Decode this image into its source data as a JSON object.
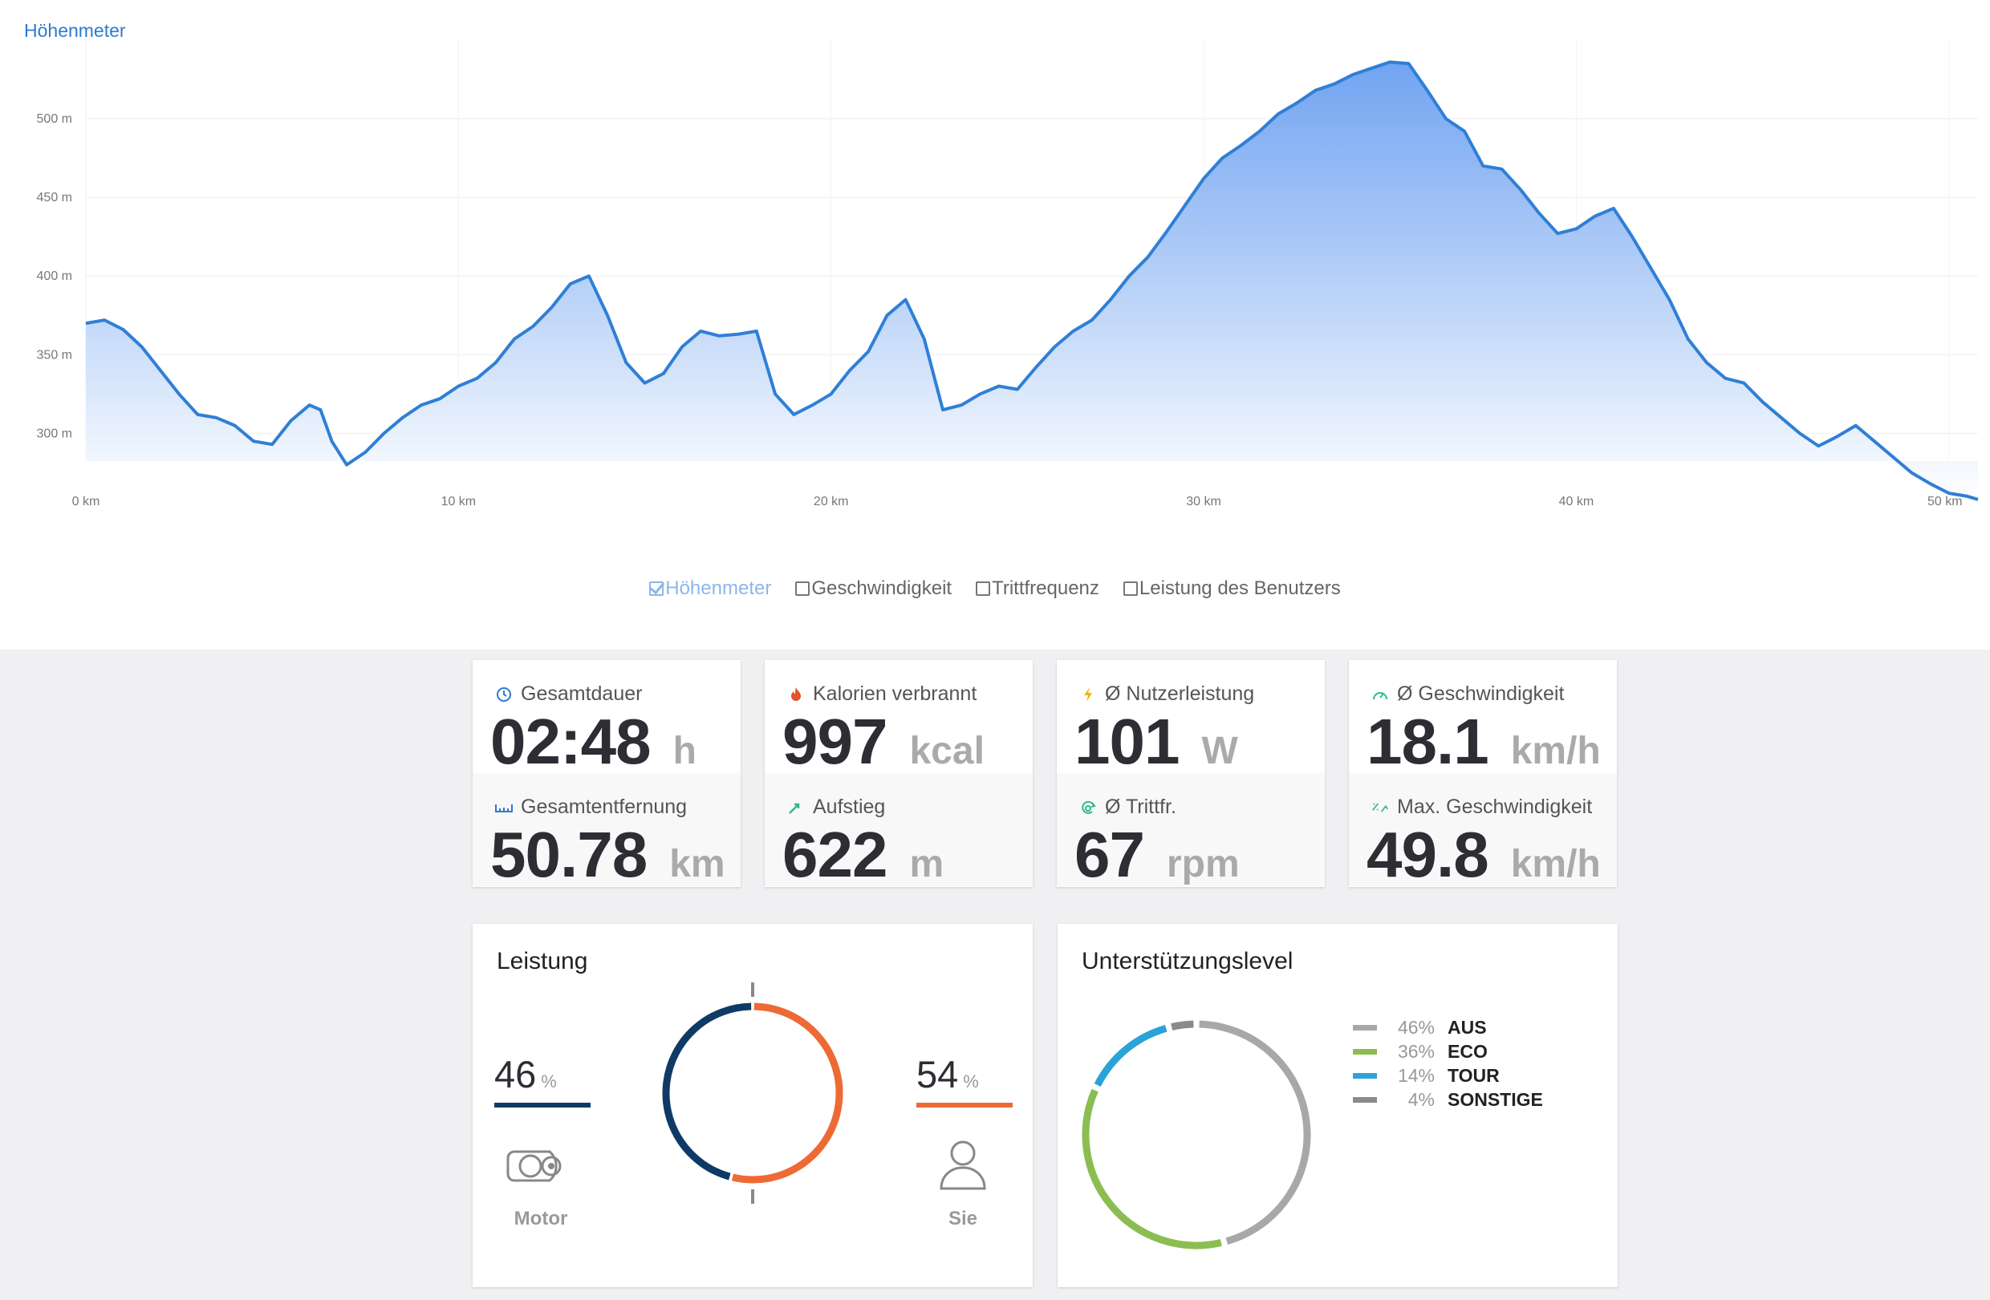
{
  "elevation": {
    "title": "Höhenmeter",
    "y_ticks": [
      "300 m",
      "350 m",
      "400 m",
      "450 m",
      "500 m"
    ],
    "x_ticks": [
      "0 km",
      "10 km",
      "20 km",
      "30 km",
      "40 km",
      "50 km"
    ],
    "legend": [
      {
        "label": "Höhenmeter",
        "checked": true
      },
      {
        "label": "Geschwindigkeit",
        "checked": false
      },
      {
        "label": "Trittfrequenz",
        "checked": false
      },
      {
        "label": "Leistung des Benutzers",
        "checked": false
      }
    ],
    "colors": {
      "line": "#2f7fd6",
      "fill_top": "#6a9ff0",
      "fill_bottom": "#ffffff",
      "title": "#2c7bd0"
    }
  },
  "chart_data": {
    "type": "area",
    "title": "Höhenmeter",
    "xlabel": "",
    "ylabel": "",
    "x_unit": "km",
    "y_unit": "m",
    "xlim": [
      0,
      50.78
    ],
    "ylim": [
      260,
      540
    ],
    "grid": true,
    "x": [
      0,
      0.5,
      1,
      1.5,
      2,
      2.5,
      3,
      3.5,
      4,
      4.5,
      5,
      5.5,
      6,
      6.3,
      6.6,
      7,
      7.5,
      8,
      8.5,
      9,
      9.5,
      10,
      10.5,
      11,
      11.5,
      12,
      12.5,
      13,
      13.5,
      14,
      14.5,
      15,
      15.5,
      16,
      16.5,
      17,
      17.5,
      18,
      18.5,
      19,
      19.5,
      20,
      20.5,
      21,
      21.5,
      22,
      22.5,
      23,
      23.5,
      24,
      24.5,
      25,
      25.5,
      26,
      26.5,
      27,
      27.5,
      28,
      28.5,
      29,
      29.5,
      30,
      30.5,
      31,
      31.5,
      32,
      32.5,
      33,
      33.5,
      34,
      34.5,
      35,
      35.5,
      36,
      36.5,
      37,
      37.5,
      38,
      38.5,
      39,
      39.5,
      40,
      40.5,
      41,
      41.5,
      42,
      42.5,
      43,
      43.5,
      44,
      44.5,
      45,
      45.5,
      46,
      46.5,
      47,
      47.5,
      48,
      48.5,
      49,
      49.5,
      50,
      50.5,
      50.78
    ],
    "y": [
      370,
      372,
      366,
      355,
      340,
      325,
      312,
      310,
      305,
      295,
      293,
      308,
      318,
      315,
      295,
      280,
      288,
      300,
      310,
      318,
      322,
      330,
      335,
      345,
      360,
      368,
      380,
      395,
      400,
      375,
      345,
      332,
      338,
      355,
      365,
      362,
      363,
      365,
      325,
      312,
      318,
      325,
      340,
      352,
      375,
      385,
      360,
      315,
      318,
      325,
      330,
      328,
      342,
      355,
      365,
      372,
      385,
      400,
      412,
      428,
      445,
      462,
      475,
      483,
      492,
      503,
      510,
      518,
      522,
      528,
      532,
      536,
      535,
      518,
      500,
      492,
      470,
      468,
      455,
      440,
      427,
      430,
      438,
      443,
      425,
      405,
      385,
      360,
      345,
      335,
      332,
      320,
      310,
      300,
      292,
      298,
      305,
      295,
      285,
      275,
      268,
      262,
      260,
      258
    ],
    "y_display_note": "",
    "series": [
      {
        "name": "Höhenmeter"
      }
    ]
  },
  "stats": [
    {
      "top": {
        "icon": "clock-icon",
        "label": "Gesamtdauer",
        "value": "02:48",
        "unit": "h"
      },
      "bottom": {
        "icon": "ruler-icon",
        "label": "Gesamtentfernung",
        "value": "50.78",
        "unit": "km"
      }
    },
    {
      "top": {
        "icon": "flame-icon",
        "label": "Kalorien verbrannt",
        "value": "997",
        "unit": "kcal"
      },
      "bottom": {
        "icon": "ascent-icon",
        "label": "Aufstieg",
        "value": "622",
        "unit": "m"
      }
    },
    {
      "top": {
        "icon": "bolt-icon",
        "label": "Ø Nutzerleistung",
        "value": "101",
        "unit": "W"
      },
      "bottom": {
        "icon": "cadence-icon",
        "label": "Ø Trittfr.",
        "value": "67",
        "unit": "rpm"
      }
    },
    {
      "top": {
        "icon": "speedometer-icon",
        "label": "Ø Geschwindigkeit",
        "value": "18.1",
        "unit": "km/h"
      },
      "bottom": {
        "icon": "max-speed-icon",
        "label": "Max. Geschwindigkeit",
        "value": "49.8",
        "unit": "km/h"
      }
    }
  ],
  "leistung": {
    "title": "Leistung",
    "motor": {
      "pct": "46",
      "sym": "%",
      "label": "Motor",
      "value": 46,
      "color": "#0f3a66"
    },
    "user": {
      "pct": "54",
      "sym": "%",
      "label": "Sie",
      "value": 54,
      "color": "#ee6a35"
    }
  },
  "support": {
    "title": "Unterstützungslevel",
    "levels": [
      {
        "pct": "46%",
        "name": "AUS",
        "value": 46,
        "color": "#a8a8ab"
      },
      {
        "pct": "36%",
        "name": "ECO",
        "value": 36,
        "color": "#8bbd52"
      },
      {
        "pct": "14%",
        "name": "TOUR",
        "value": 14,
        "color": "#2aa3d8"
      },
      {
        "pct": "4%",
        "name": "SONSTIGE",
        "value": 4,
        "color": "#8a8a8c"
      }
    ]
  }
}
